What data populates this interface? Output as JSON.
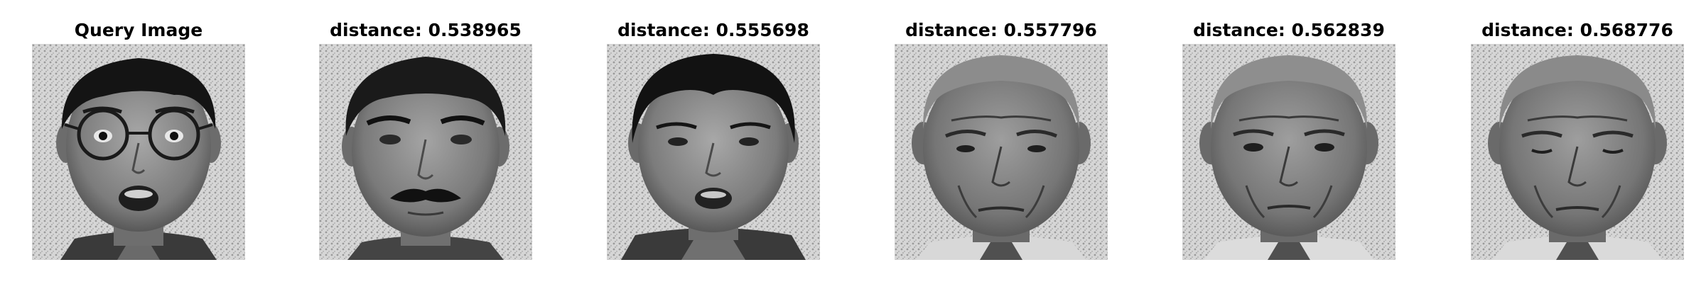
{
  "query": {
    "title": "Query Image"
  },
  "results": [
    {
      "title": "distance: 0.538965"
    },
    {
      "title": "distance: 0.555698"
    },
    {
      "title": "distance: 0.557796"
    },
    {
      "title": "distance: 0.562839"
    },
    {
      "title": "distance: 0.568776"
    }
  ]
}
